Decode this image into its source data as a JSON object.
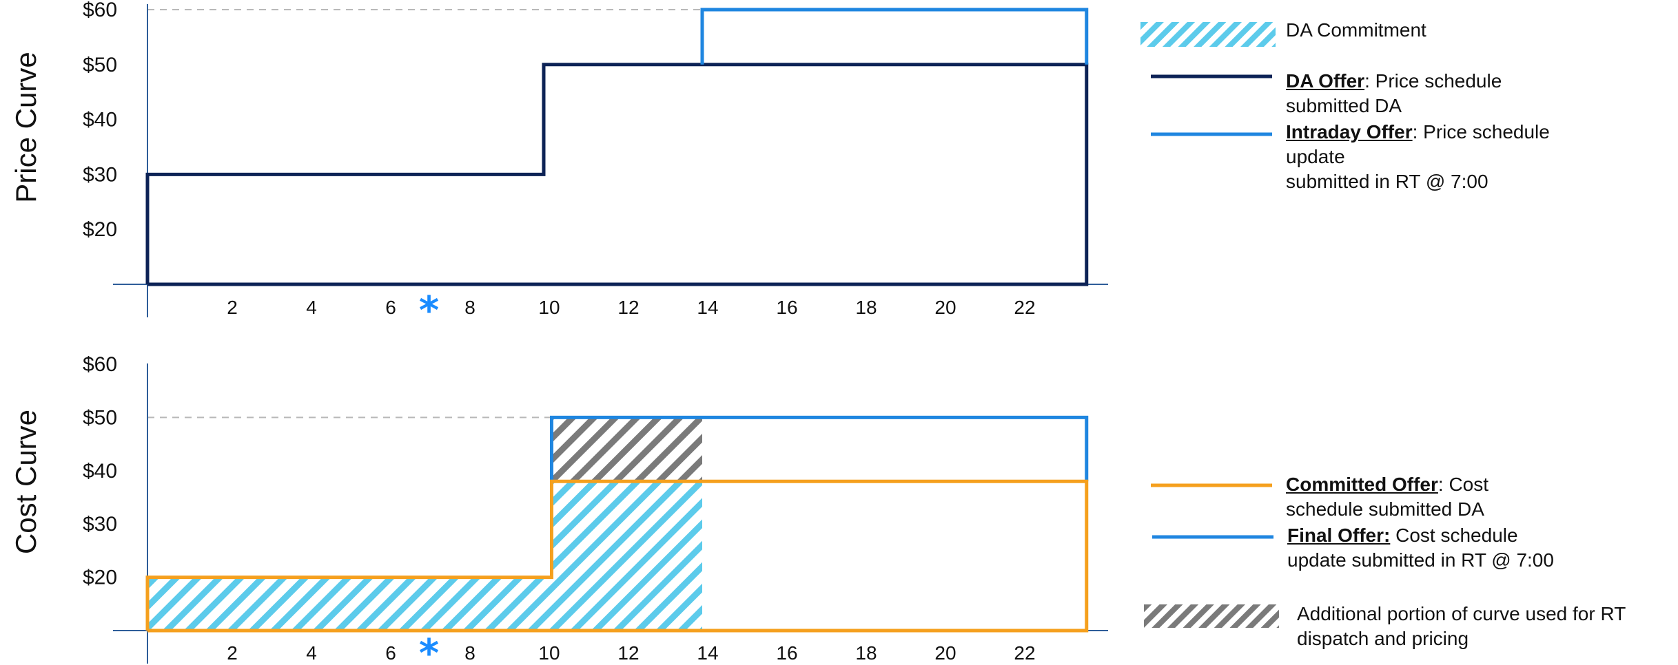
{
  "colors": {
    "da_offer": "#0d2356",
    "intraday_offer": "#1f86e0",
    "committed_offer": "#f5a01e",
    "final_offer": "#1f86e0",
    "da_commitment_hatch": "#5ccbeb",
    "additional_hatch": "#7a7a7a",
    "star": "#1a8cff",
    "axis": "#2e5d99",
    "ref_line": "#b8b8b8"
  },
  "chart_data": [
    {
      "type": "line",
      "step": true,
      "ylabel": "Price Curve",
      "xlabel": "",
      "y_ticks": [
        "$60",
        "$50",
        "$40",
        "$30",
        "$20"
      ],
      "y_tick_values": [
        60,
        50,
        40,
        30,
        20
      ],
      "x_ticks": [
        2,
        4,
        6,
        8,
        10,
        12,
        14,
        16,
        18,
        20,
        22
      ],
      "ylim": [
        10,
        60
      ],
      "xlim": [
        0,
        24
      ],
      "marker_star_x": 7,
      "ref_line_y": 60,
      "series": [
        {
          "key": "da_offer",
          "points": [
            [
              0,
              10
            ],
            [
              0,
              30
            ],
            [
              10,
              30
            ],
            [
              10,
              50
            ],
            [
              23.7,
              50
            ],
            [
              23.7,
              10
            ],
            [
              0,
              10
            ]
          ]
        },
        {
          "key": "intraday_offer",
          "points": [
            [
              14,
              50
            ],
            [
              14,
              60
            ],
            [
              23.7,
              60
            ],
            [
              23.7,
              50
            ]
          ]
        }
      ]
    },
    {
      "type": "line",
      "step": true,
      "ylabel": "Cost Curve",
      "xlabel": "",
      "y_ticks": [
        "$60",
        "$50",
        "$40",
        "$30",
        "$20"
      ],
      "y_tick_values": [
        60,
        50,
        40,
        30,
        20
      ],
      "x_ticks": [
        2,
        4,
        6,
        8,
        10,
        12,
        14,
        16,
        18,
        20,
        22
      ],
      "ylim": [
        10,
        60
      ],
      "xlim": [
        0,
        24
      ],
      "marker_star_x": 7,
      "ref_line_y": 50,
      "hatched_regions": [
        {
          "key": "da_commitment",
          "points": [
            [
              0,
              10
            ],
            [
              0,
              20
            ],
            [
              10.2,
              20
            ],
            [
              10.2,
              38
            ],
            [
              14,
              38
            ],
            [
              14,
              10
            ]
          ]
        },
        {
          "key": "additional",
          "points": [
            [
              10.2,
              38
            ],
            [
              10.2,
              50
            ],
            [
              14,
              50
            ],
            [
              14,
              38
            ]
          ]
        }
      ],
      "series": [
        {
          "key": "final_offer",
          "points": [
            [
              10.2,
              38
            ],
            [
              10.2,
              50
            ],
            [
              23.7,
              50
            ],
            [
              23.7,
              38
            ]
          ]
        },
        {
          "key": "committed_offer",
          "points": [
            [
              0,
              10
            ],
            [
              0,
              20
            ],
            [
              10.2,
              20
            ],
            [
              10.2,
              38
            ],
            [
              23.7,
              38
            ],
            [
              23.7,
              10
            ],
            [
              0,
              10
            ]
          ]
        }
      ]
    }
  ],
  "legend": {
    "da_commitment": {
      "text": "DA Commitment"
    },
    "da_offer": {
      "term": "DA Offer",
      "text1": ": Price schedule",
      "text2": "submitted DA"
    },
    "intraday_offer": {
      "term": "Intraday Offer",
      "text1": ": Price schedule",
      "text2": "update",
      "text3": "submitted in RT @ 7:00"
    },
    "committed_offer": {
      "term": "Committed Offer",
      "text1": ": Cost",
      "text2": "schedule submitted DA"
    },
    "final_offer": {
      "term": "Final Offer:",
      "text1": " Cost schedule",
      "text2": "update submitted in RT @ 7:00"
    },
    "additional": {
      "text1": "Additional portion of curve used for RT",
      "text2": "dispatch and pricing"
    }
  }
}
